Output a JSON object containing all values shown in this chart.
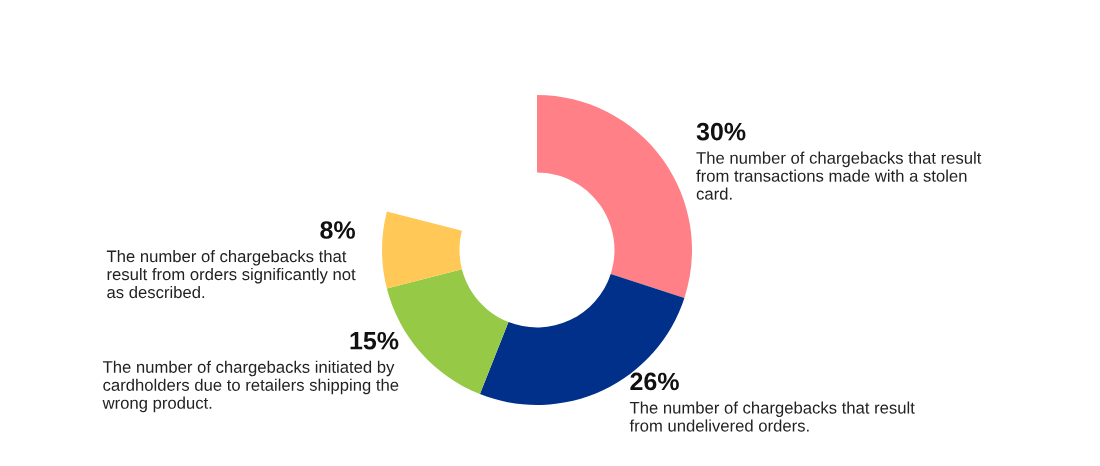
{
  "chart_data": {
    "type": "donut",
    "categories": [
      "The number of chargebacks that result\nfrom transactions made with a stolen\ncard.",
      "The number of chargebacks that result\nfrom undelivered orders.",
      "The number of chargebacks initiated by\ncardholders due to retailers shipping the\nwrong product.",
      "The number of chargebacks that\nresult from orders significantly not\nas described."
    ],
    "values": [
      30,
      26,
      15,
      8
    ],
    "value_labels": [
      "30%",
      "26%",
      "15%",
      "8%"
    ],
    "colors": [
      "#ff8087",
      "#00308a",
      "#96c945",
      "#ffc857"
    ],
    "legend": false
  }
}
